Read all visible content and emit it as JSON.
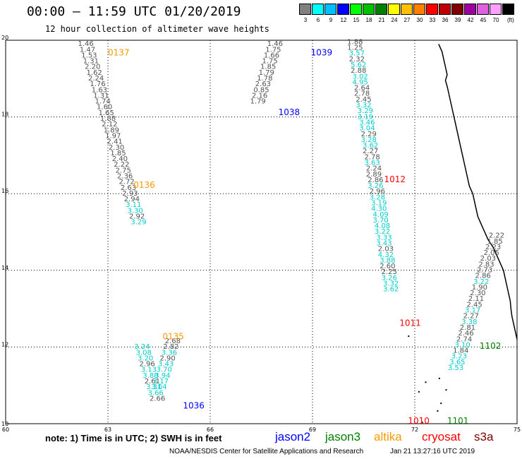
{
  "header": {
    "title": "00:00 – 11:59 UTC 01/20/2019",
    "subtitle": "12 hour collection of altimeter wave heights"
  },
  "legend": {
    "unit": "(ft)",
    "bins": [
      {
        "label": "3",
        "color": "#808080"
      },
      {
        "label": "6",
        "color": "#00ffff"
      },
      {
        "label": "9",
        "color": "#00bfff"
      },
      {
        "label": "12",
        "color": "#0000ff"
      },
      {
        "label": "15",
        "color": "#00ff00"
      },
      {
        "label": "18",
        "color": "#00c000"
      },
      {
        "label": "21",
        "color": "#008000"
      },
      {
        "label": "24",
        "color": "#ffff00"
      },
      {
        "label": "27",
        "color": "#ffc000"
      },
      {
        "label": "30",
        "color": "#ff8000"
      },
      {
        "label": "33",
        "color": "#ff0000"
      },
      {
        "label": "36",
        "color": "#c00000"
      },
      {
        "label": "39",
        "color": "#800000"
      },
      {
        "label": "42",
        "color": "#a000a0"
      },
      {
        "label": "45",
        "color": "#e060e0"
      },
      {
        "label": "70",
        "color": "#ffa0ff"
      },
      {
        "label": "",
        "color": "#000000"
      }
    ]
  },
  "map": {
    "lon_ticks": [
      "60",
      "63",
      "66",
      "69",
      "72",
      "75"
    ],
    "lat_ticks": [
      "10",
      "12",
      "14",
      "16",
      "18",
      "20"
    ],
    "passes": [
      {
        "label": "0137",
        "color": "#ff9900",
        "lon": 63.0,
        "lat": 19.6
      },
      {
        "label": "0136",
        "color": "#ff9900",
        "lon": 63.75,
        "lat": 16.15
      },
      {
        "label": "0135",
        "color": "#ff9900",
        "lon": 64.6,
        "lat": 12.2
      },
      {
        "label": "1036",
        "color": "#0000ff",
        "lon": 65.2,
        "lat": 10.4
      },
      {
        "label": "1038",
        "color": "#0000ff",
        "lon": 68.0,
        "lat": 18.05
      },
      {
        "label": "1039",
        "color": "#0000ff",
        "lon": 68.95,
        "lat": 19.6
      },
      {
        "label": "1012",
        "color": "#ff0000",
        "lon": 71.1,
        "lat": 16.3
      },
      {
        "label": "1011",
        "color": "#ff0000",
        "lon": 71.55,
        "lat": 12.55
      },
      {
        "label": "1010",
        "color": "#ff0000",
        "lon": 71.8,
        "lat": 10.0
      },
      {
        "label": "1102",
        "color": "#008000",
        "lon": 73.9,
        "lat": 11.95
      },
      {
        "label": "1101",
        "color": "#008000",
        "lon": 72.95,
        "lat": 10.0
      }
    ],
    "tracks": [
      {
        "name": "track-0137",
        "points": [
          {
            "v": "1.46",
            "c": "g",
            "lon": 62.35,
            "lat": 19.85
          },
          {
            "v": "1.47",
            "c": "g",
            "lon": 62.4,
            "lat": 19.7
          },
          {
            "v": "1.53",
            "c": "g",
            "lon": 62.45,
            "lat": 19.55
          },
          {
            "v": "1.31",
            "c": "g",
            "lon": 62.5,
            "lat": 19.4
          },
          {
            "v": "2.20",
            "c": "g",
            "lon": 62.55,
            "lat": 19.25
          },
          {
            "v": "1.62",
            "c": "g",
            "lon": 62.6,
            "lat": 19.1
          },
          {
            "v": "2.24",
            "c": "g",
            "lon": 62.65,
            "lat": 18.95
          },
          {
            "v": "1.76",
            "c": "g",
            "lon": 62.7,
            "lat": 18.8
          },
          {
            "v": "1.63",
            "c": "g",
            "lon": 62.75,
            "lat": 18.65
          },
          {
            "v": "1.31",
            "c": "g",
            "lon": 62.8,
            "lat": 18.5
          },
          {
            "v": "1.74",
            "c": "g",
            "lon": 62.85,
            "lat": 18.35
          },
          {
            "v": "1.60",
            "c": "g",
            "lon": 62.9,
            "lat": 18.2
          },
          {
            "v": "1.65",
            "c": "g",
            "lon": 62.95,
            "lat": 18.05
          },
          {
            "v": "1.88",
            "c": "g",
            "lon": 63.0,
            "lat": 17.9
          },
          {
            "v": "2.12",
            "c": "g",
            "lon": 63.05,
            "lat": 17.75
          },
          {
            "v": "1.89",
            "c": "g",
            "lon": 63.1,
            "lat": 17.6
          },
          {
            "v": "1.97",
            "c": "g",
            "lon": 63.15,
            "lat": 17.45
          },
          {
            "v": "2.41",
            "c": "g",
            "lon": 63.2,
            "lat": 17.3
          },
          {
            "v": "2.30",
            "c": "g",
            "lon": 63.25,
            "lat": 17.15
          },
          {
            "v": "1.85",
            "c": "g",
            "lon": 63.3,
            "lat": 17.0
          },
          {
            "v": "2.40",
            "c": "g",
            "lon": 63.35,
            "lat": 16.85
          },
          {
            "v": "2.22",
            "c": "g",
            "lon": 63.4,
            "lat": 16.7
          },
          {
            "v": "2.75",
            "c": "g",
            "lon": 63.45,
            "lat": 16.55
          },
          {
            "v": "2.36",
            "c": "g",
            "lon": 63.5,
            "lat": 16.4
          },
          {
            "v": "2.72",
            "c": "g",
            "lon": 63.55,
            "lat": 16.25
          },
          {
            "v": "2.63",
            "c": "g",
            "lon": 63.6,
            "lat": 16.1
          },
          {
            "v": "2.93",
            "c": "g",
            "lon": 63.65,
            "lat": 15.95
          },
          {
            "v": "2.94",
            "c": "g",
            "lon": 63.7,
            "lat": 15.8
          },
          {
            "v": "3.11",
            "c": "c",
            "lon": 63.75,
            "lat": 15.65
          },
          {
            "v": "3.30",
            "c": "c",
            "lon": 63.8,
            "lat": 15.5
          },
          {
            "v": "2.92",
            "c": "g",
            "lon": 63.85,
            "lat": 15.35
          },
          {
            "v": "3.29",
            "c": "c",
            "lon": 63.9,
            "lat": 15.2
          }
        ]
      },
      {
        "name": "track-0135",
        "points": [
          {
            "v": "3.24",
            "c": "c",
            "lon": 64.0,
            "lat": 11.95
          },
          {
            "v": "3.08",
            "c": "c",
            "lon": 64.05,
            "lat": 11.8
          },
          {
            "v": "3.20",
            "c": "c",
            "lon": 64.1,
            "lat": 11.65
          },
          {
            "v": "2.96",
            "c": "g",
            "lon": 64.15,
            "lat": 11.5
          },
          {
            "v": "3.13",
            "c": "c",
            "lon": 64.2,
            "lat": 11.35
          },
          {
            "v": "3.88",
            "c": "c",
            "lon": 64.25,
            "lat": 11.2
          },
          {
            "v": "2.61",
            "c": "g",
            "lon": 64.3,
            "lat": 11.05
          },
          {
            "v": "3.31",
            "c": "c",
            "lon": 64.35,
            "lat": 10.9
          },
          {
            "v": "3.66",
            "c": "c",
            "lon": 64.4,
            "lat": 10.75
          },
          {
            "v": "2.66",
            "c": "g",
            "lon": 64.45,
            "lat": 10.6
          },
          {
            "v": "2.68",
            "c": "g",
            "lon": 64.9,
            "lat": 12.1
          },
          {
            "v": "2.82",
            "c": "g",
            "lon": 64.85,
            "lat": 11.95
          },
          {
            "v": "3.36",
            "c": "c",
            "lon": 64.8,
            "lat": 11.8
          },
          {
            "v": "2.90",
            "c": "g",
            "lon": 64.75,
            "lat": 11.65
          },
          {
            "v": "3.43",
            "c": "c",
            "lon": 64.7,
            "lat": 11.5
          },
          {
            "v": "3.70",
            "c": "c",
            "lon": 64.65,
            "lat": 11.35
          },
          {
            "v": "3.94",
            "c": "c",
            "lon": 64.6,
            "lat": 11.2
          },
          {
            "v": "3.17",
            "c": "c",
            "lon": 64.55,
            "lat": 11.05
          },
          {
            "v": "3.04",
            "c": "c",
            "lon": 64.5,
            "lat": 10.9
          }
        ]
      },
      {
        "name": "track-1039",
        "points": [
          {
            "v": "1.46",
            "c": "g",
            "lon": 67.9,
            "lat": 19.85
          },
          {
            "v": "1.75",
            "c": "g",
            "lon": 67.85,
            "lat": 19.7
          },
          {
            "v": "1.66",
            "c": "g",
            "lon": 67.8,
            "lat": 19.55
          },
          {
            "v": "1.75",
            "c": "g",
            "lon": 67.75,
            "lat": 19.4
          },
          {
            "v": "1.85",
            "c": "g",
            "lon": 67.7,
            "lat": 19.25
          },
          {
            "v": "1.79",
            "c": "g",
            "lon": 67.65,
            "lat": 19.1
          },
          {
            "v": "1.78",
            "c": "g",
            "lon": 67.6,
            "lat": 18.95
          },
          {
            "v": "2.63",
            "c": "g",
            "lon": 67.55,
            "lat": 18.8
          },
          {
            "v": "0.85",
            "c": "g",
            "lon": 67.5,
            "lat": 18.65
          },
          {
            "v": "2.16",
            "c": "g",
            "lon": 67.45,
            "lat": 18.5
          },
          {
            "v": "1.79",
            "c": "g",
            "lon": 67.4,
            "lat": 18.35
          }
        ]
      },
      {
        "name": "track-1012",
        "points": [
          {
            "v": "1.88",
            "c": "g",
            "lon": 70.25,
            "lat": 19.9
          },
          {
            "v": "1.25",
            "c": "g",
            "lon": 70.25,
            "lat": 19.75
          },
          {
            "v": "3.57",
            "c": "c",
            "lon": 70.3,
            "lat": 19.6
          },
          {
            "v": "2.32",
            "c": "g",
            "lon": 70.3,
            "lat": 19.45
          },
          {
            "v": "5.62",
            "c": "c",
            "lon": 70.35,
            "lat": 19.3
          },
          {
            "v": "2.88",
            "c": "g",
            "lon": 70.35,
            "lat": 19.15
          },
          {
            "v": "3.02",
            "c": "c",
            "lon": 70.4,
            "lat": 19.0
          },
          {
            "v": "4.95",
            "c": "c",
            "lon": 70.4,
            "lat": 18.85
          },
          {
            "v": "2.64",
            "c": "g",
            "lon": 70.45,
            "lat": 18.7
          },
          {
            "v": "2.78",
            "c": "g",
            "lon": 70.45,
            "lat": 18.55
          },
          {
            "v": "2.45",
            "c": "g",
            "lon": 70.5,
            "lat": 18.4
          },
          {
            "v": "3.32",
            "c": "c",
            "lon": 70.5,
            "lat": 18.25
          },
          {
            "v": "3.29",
            "c": "c",
            "lon": 70.55,
            "lat": 18.1
          },
          {
            "v": "3.19",
            "c": "c",
            "lon": 70.55,
            "lat": 17.95
          },
          {
            "v": "3.46",
            "c": "c",
            "lon": 70.6,
            "lat": 17.8
          },
          {
            "v": "3.04",
            "c": "c",
            "lon": 70.6,
            "lat": 17.65
          },
          {
            "v": "2.29",
            "c": "g",
            "lon": 70.65,
            "lat": 17.5
          },
          {
            "v": "3.28",
            "c": "c",
            "lon": 70.65,
            "lat": 17.35
          },
          {
            "v": "3.62",
            "c": "c",
            "lon": 70.7,
            "lat": 17.2
          },
          {
            "v": "2.27",
            "c": "g",
            "lon": 70.7,
            "lat": 17.05
          },
          {
            "v": "2.78",
            "c": "g",
            "lon": 70.75,
            "lat": 16.9
          },
          {
            "v": "3.63",
            "c": "c",
            "lon": 70.75,
            "lat": 16.75
          },
          {
            "v": "2.24",
            "c": "g",
            "lon": 70.8,
            "lat": 16.6
          },
          {
            "v": "2.89",
            "c": "g",
            "lon": 70.8,
            "lat": 16.45
          },
          {
            "v": "2.86",
            "c": "g",
            "lon": 70.85,
            "lat": 16.3
          },
          {
            "v": "3.26",
            "c": "c",
            "lon": 70.85,
            "lat": 16.15
          },
          {
            "v": "2.96",
            "c": "g",
            "lon": 70.9,
            "lat": 16.0
          },
          {
            "v": "3.28",
            "c": "c",
            "lon": 70.9,
            "lat": 15.85
          },
          {
            "v": "3.19",
            "c": "c",
            "lon": 70.95,
            "lat": 15.7
          },
          {
            "v": "4.30",
            "c": "c",
            "lon": 70.95,
            "lat": 15.55
          },
          {
            "v": "4.09",
            "c": "c",
            "lon": 71.0,
            "lat": 15.4
          },
          {
            "v": "3.70",
            "c": "c",
            "lon": 71.0,
            "lat": 15.25
          },
          {
            "v": "4.08",
            "c": "c",
            "lon": 71.05,
            "lat": 15.1
          },
          {
            "v": "3.22",
            "c": "c",
            "lon": 71.05,
            "lat": 14.95
          },
          {
            "v": "3.33",
            "c": "c",
            "lon": 71.1,
            "lat": 14.8
          },
          {
            "v": "3.43",
            "c": "c",
            "lon": 71.1,
            "lat": 14.65
          },
          {
            "v": "2.03",
            "c": "g",
            "lon": 71.15,
            "lat": 14.5
          },
          {
            "v": "4.32",
            "c": "c",
            "lon": 71.15,
            "lat": 14.35
          },
          {
            "v": "3.88",
            "c": "c",
            "lon": 71.2,
            "lat": 14.2
          },
          {
            "v": "2.60",
            "c": "g",
            "lon": 71.2,
            "lat": 14.05
          },
          {
            "v": "2.25",
            "c": "g",
            "lon": 71.25,
            "lat": 13.9
          },
          {
            "v": "3.26",
            "c": "c",
            "lon": 71.25,
            "lat": 13.75
          },
          {
            "v": "3.32",
            "c": "c",
            "lon": 71.3,
            "lat": 13.6
          },
          {
            "v": "3.62",
            "c": "c",
            "lon": 71.3,
            "lat": 13.45
          }
        ]
      },
      {
        "name": "track-1102",
        "points": [
          {
            "v": "2.22",
            "c": "g",
            "lon": 74.4,
            "lat": 14.85
          },
          {
            "v": "1.85",
            "c": "g",
            "lon": 74.35,
            "lat": 14.7
          },
          {
            "v": "2.23",
            "c": "g",
            "lon": 74.3,
            "lat": 14.55
          },
          {
            "v": "2.05",
            "c": "g",
            "lon": 74.25,
            "lat": 14.4
          },
          {
            "v": "2.03",
            "c": "g",
            "lon": 74.15,
            "lat": 14.25
          },
          {
            "v": "2.83",
            "c": "g",
            "lon": 74.1,
            "lat": 14.1
          },
          {
            "v": "2.73",
            "c": "g",
            "lon": 74.05,
            "lat": 13.95
          },
          {
            "v": "2.86",
            "c": "g",
            "lon": 74.0,
            "lat": 13.8
          },
          {
            "v": "3.22",
            "c": "c",
            "lon": 73.95,
            "lat": 13.65
          },
          {
            "v": "1.90",
            "c": "g",
            "lon": 73.9,
            "lat": 13.5
          },
          {
            "v": "2.30",
            "c": "g",
            "lon": 73.85,
            "lat": 13.35
          },
          {
            "v": "2.11",
            "c": "g",
            "lon": 73.8,
            "lat": 13.2
          },
          {
            "v": "2.45",
            "c": "g",
            "lon": 73.75,
            "lat": 13.05
          },
          {
            "v": "3.17",
            "c": "c",
            "lon": 73.7,
            "lat": 12.9
          },
          {
            "v": "2.27",
            "c": "g",
            "lon": 73.65,
            "lat": 12.75
          },
          {
            "v": "3.38",
            "c": "c",
            "lon": 73.6,
            "lat": 12.6
          },
          {
            "v": "2.81",
            "c": "g",
            "lon": 73.55,
            "lat": 12.45
          },
          {
            "v": "2.46",
            "c": "g",
            "lon": 73.5,
            "lat": 12.3
          },
          {
            "v": "2.74",
            "c": "g",
            "lon": 73.45,
            "lat": 12.15
          },
          {
            "v": "3.10",
            "c": "c",
            "lon": 73.4,
            "lat": 12.0
          },
          {
            "v": "1.84",
            "c": "g",
            "lon": 73.35,
            "lat": 11.85
          },
          {
            "v": "3.23",
            "c": "c",
            "lon": 73.3,
            "lat": 11.7
          },
          {
            "v": "3.65",
            "c": "c",
            "lon": 73.25,
            "lat": 11.55
          },
          {
            "v": "3.53",
            "c": "c",
            "lon": 73.2,
            "lat": 11.4
          }
        ]
      }
    ]
  },
  "footer": {
    "note": "note: 1) Time is in UTC; 2) SWH is in feet",
    "satellites": [
      {
        "name": "jason2",
        "color": "#0000ff"
      },
      {
        "name": "jason3",
        "color": "#008000"
      },
      {
        "name": "altika",
        "color": "#ff9900"
      },
      {
        "name": "cryosat",
        "color": "#ff0000"
      },
      {
        "name": "s3a",
        "color": "#800000"
      }
    ],
    "credit": "NOAA/NESDIS Center for Satellite Applications and Research",
    "timestamp": "Jan 21 13:27:16 UTC 2019"
  }
}
